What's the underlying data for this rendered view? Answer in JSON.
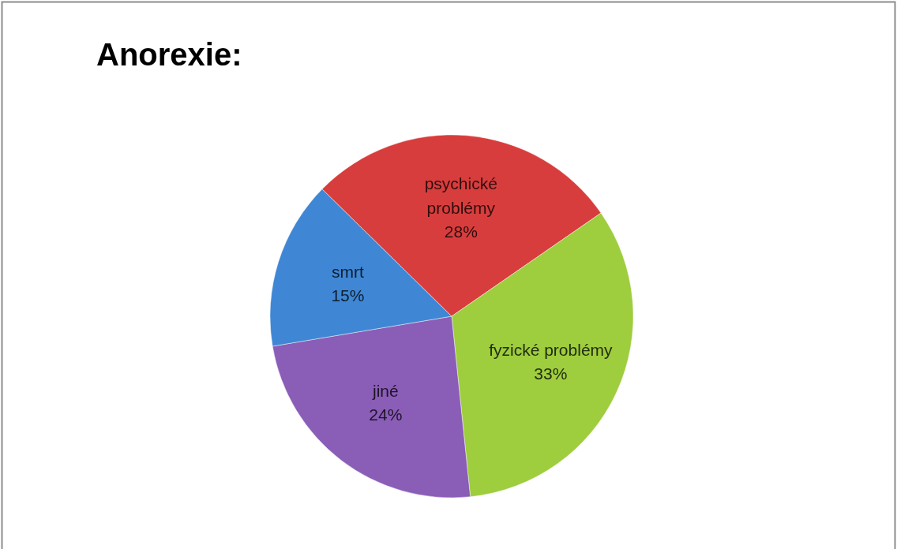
{
  "chart_data": {
    "type": "pie",
    "title": "Anorexie:",
    "categories": [
      "psychické problémy",
      "fyzické problémy",
      "jiné",
      "smrt"
    ],
    "values": [
      28,
      33,
      24,
      15
    ],
    "colors": [
      "#d83d3d",
      "#9ecd3e",
      "#8a5db7",
      "#3f87d4"
    ],
    "value_labels": [
      "28%",
      "33%",
      "24%",
      "15%"
    ]
  }
}
